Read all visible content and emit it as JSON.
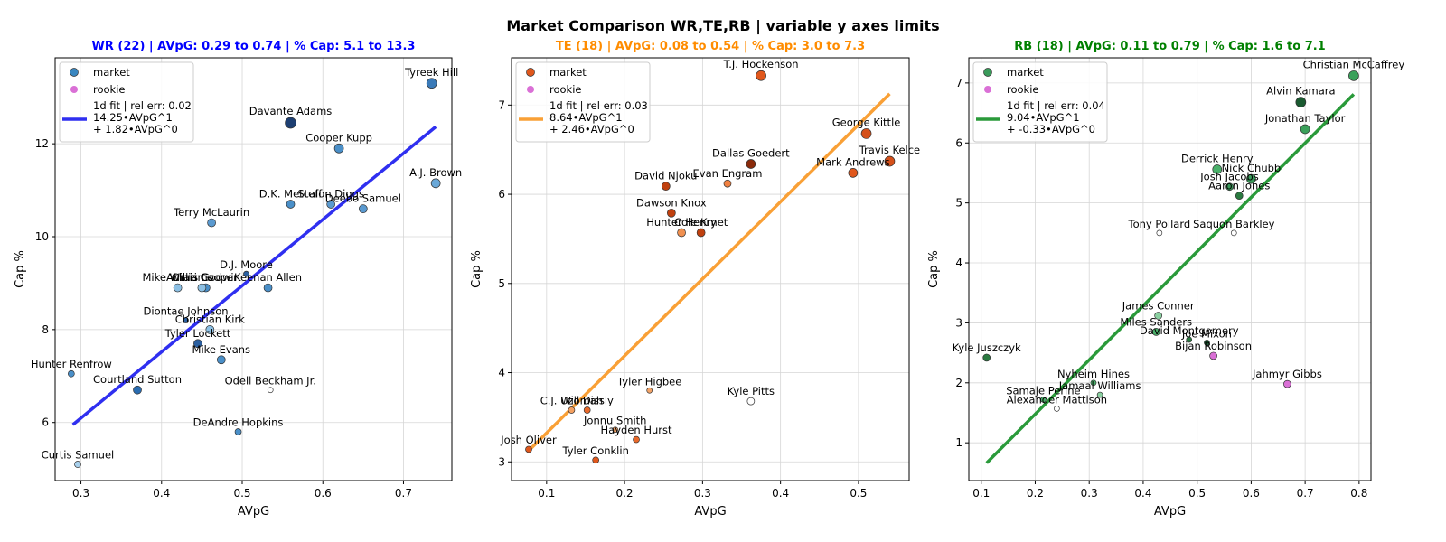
{
  "suptitle": "Market Comparison WR,TE,RB | variable y axes limits",
  "colors": {
    "market_edge": "#333333",
    "rookie": "#da70d6",
    "grid": "#d6d6d6"
  },
  "chart_data": [
    {
      "type": "scatter",
      "title": "WR (22) | AVpG: 0.29 to 0.74 | % Cap: 5.1 to 13.3",
      "title_color": "#0000ff",
      "fit_color": "#2f2ff0",
      "market_color": "#3a87c0",
      "xlabel": "AVpG",
      "ylabel": "Cap %",
      "xlim": [
        0.268,
        0.76
      ],
      "ylim": [
        4.75,
        13.85
      ],
      "xticks": [
        0.3,
        0.4,
        0.5,
        0.6,
        0.7
      ],
      "xtick_labels": [
        "0.3",
        "0.4",
        "0.5",
        "0.6",
        "0.7"
      ],
      "yticks": [
        6,
        8,
        10,
        12
      ],
      "ytick_labels": [
        "6",
        "8",
        "10",
        "12"
      ],
      "grid": true,
      "legend": {
        "location": "upper-left",
        "market": "market",
        "rookie": "rookie",
        "fit_lines": [
          "1d fit | rel err: 0.02",
          "14.25•AVpG^1",
          "+ 1.82•AVpG^0"
        ]
      },
      "fit": {
        "coef": [
          14.25,
          1.82
        ],
        "x_range": [
          0.29,
          0.74
        ]
      },
      "points": [
        {
          "label": "Tyreek Hill",
          "x": 0.735,
          "y": 13.3,
          "fill": "#3a7ab8",
          "r": 5.5
        },
        {
          "label": "Davante Adams",
          "x": 0.56,
          "y": 12.45,
          "fill": "#1d3f72",
          "r": 6
        },
        {
          "label": "Cooper Kupp",
          "x": 0.62,
          "y": 11.9,
          "fill": "#4a8fc8",
          "r": 5
        },
        {
          "label": "A.J. Brown",
          "x": 0.74,
          "y": 11.15,
          "fill": "#6aa8d8",
          "r": 5
        },
        {
          "label": "D.K. Metcalf",
          "x": 0.56,
          "y": 10.7,
          "fill": "#4a8fc8",
          "r": 4.5
        },
        {
          "label": "Stefon Diggs",
          "x": 0.61,
          "y": 10.7,
          "fill": "#5a9ad0",
          "r": 4.5
        },
        {
          "label": "Deebo Samuel",
          "x": 0.65,
          "y": 10.6,
          "fill": "#5a9ad0",
          "r": 4.5
        },
        {
          "label": "Terry McLaurin",
          "x": 0.462,
          "y": 10.3,
          "fill": "#5a9ad0",
          "r": 4.5
        },
        {
          "label": "D.J. Moore",
          "x": 0.505,
          "y": 9.2,
          "fill": "#2a5fa0",
          "r": 3
        },
        {
          "label": "Mike Williams",
          "x": 0.42,
          "y": 8.9,
          "fill": "#8cc0e4",
          "r": 4.5
        },
        {
          "label": "Chris Godwin",
          "x": 0.455,
          "y": 8.9,
          "fill": "#4a8fc8",
          "r": 4.5
        },
        {
          "label": "Amari Cooper",
          "x": 0.45,
          "y": 8.9,
          "fill": "#8cc0e4",
          "r": 4.5
        },
        {
          "label": "Keenan Allen",
          "x": 0.532,
          "y": 8.9,
          "fill": "#4a8fc8",
          "r": 4.5
        },
        {
          "label": "Diontae Johnson",
          "x": 0.43,
          "y": 8.2,
          "fill": "#2a5fa0",
          "r": 3
        },
        {
          "label": "Christian Kirk",
          "x": 0.46,
          "y": 8.0,
          "fill": "#8cc0e4",
          "r": 4.5
        },
        {
          "label": "Tyler Lockett",
          "x": 0.445,
          "y": 7.7,
          "fill": "#2a5fa0",
          "r": 4.5
        },
        {
          "label": "Mike Evans",
          "x": 0.474,
          "y": 7.35,
          "fill": "#4a8fc8",
          "r": 4.5
        },
        {
          "label": "Hunter Renfrow",
          "x": 0.288,
          "y": 7.05,
          "fill": "#4a8fc8",
          "r": 3.5
        },
        {
          "label": "Courtland Sutton",
          "x": 0.37,
          "y": 6.7,
          "fill": "#2a6cb0",
          "r": 4.5
        },
        {
          "label": "Odell Beckham Jr.",
          "x": 0.535,
          "y": 6.7,
          "fill": "#ffffff",
          "r": 3
        },
        {
          "label": "DeAndre Hopkins",
          "x": 0.495,
          "y": 5.8,
          "fill": "#4a8fc8",
          "r": 3.5
        },
        {
          "label": "Curtis Samuel",
          "x": 0.296,
          "y": 5.1,
          "fill": "#a8d0ec",
          "r": 3.5
        }
      ]
    },
    {
      "type": "scatter",
      "title": "TE (18) | AVpG: 0.08 to 0.54 | % Cap: 3.0 to 7.3",
      "title_color": "#ff8c00",
      "fit_color": "#f9a036",
      "market_color": "#e0571c",
      "xlabel": "AVpG",
      "ylabel": "Cap %",
      "xlim": [
        0.055,
        0.565
      ],
      "ylim": [
        2.79,
        7.53
      ],
      "xticks": [
        0.1,
        0.2,
        0.3,
        0.4,
        0.5
      ],
      "xtick_labels": [
        "0.1",
        "0.2",
        "0.3",
        "0.4",
        "0.5"
      ],
      "yticks": [
        3,
        4,
        5,
        6,
        7
      ],
      "ytick_labels": [
        "3",
        "4",
        "5",
        "6",
        "7"
      ],
      "grid": true,
      "legend": {
        "location": "upper-left",
        "market": "market",
        "rookie": "rookie",
        "fit_lines": [
          "1d fit | rel err: 0.03",
          "8.64•AVpG^1",
          "+ 2.46•AVpG^0"
        ]
      },
      "fit": {
        "coef": [
          8.64,
          2.46
        ],
        "x_range": [
          0.08,
          0.54
        ]
      },
      "points": [
        {
          "label": "T.J. Hockenson",
          "x": 0.375,
          "y": 7.33,
          "fill": "#e0571c",
          "r": 5.5
        },
        {
          "label": "George Kittle",
          "x": 0.51,
          "y": 6.68,
          "fill": "#d5501a",
          "r": 5.5
        },
        {
          "label": "Travis Kelce",
          "x": 0.54,
          "y": 6.37,
          "fill": "#d5501a",
          "r": 5.5
        },
        {
          "label": "Dallas Goedert",
          "x": 0.362,
          "y": 6.34,
          "fill": "#8a2a0a",
          "r": 5
        },
        {
          "label": "Mark Andrews",
          "x": 0.493,
          "y": 6.24,
          "fill": "#e0571c",
          "r": 5
        },
        {
          "label": "Evan Engram",
          "x": 0.332,
          "y": 6.12,
          "fill": "#f08040",
          "r": 4
        },
        {
          "label": "David Njoku",
          "x": 0.253,
          "y": 6.09,
          "fill": "#c0400e",
          "r": 4.5
        },
        {
          "label": "Dawson Knox",
          "x": 0.26,
          "y": 5.79,
          "fill": "#c0400e",
          "r": 4.5
        },
        {
          "label": "Hunter Henry",
          "x": 0.273,
          "y": 5.57,
          "fill": "#f09050",
          "r": 4.5
        },
        {
          "label": "Cole Kmet",
          "x": 0.298,
          "y": 5.57,
          "fill": "#c0400e",
          "r": 4.5
        },
        {
          "label": "Tyler Higbee",
          "x": 0.232,
          "y": 3.8,
          "fill": "#f4a468",
          "r": 3
        },
        {
          "label": "Kyle Pitts",
          "x": 0.362,
          "y": 3.68,
          "fill": "#ffffff",
          "r": 4
        },
        {
          "label": "C.J. Uzomah",
          "x": 0.132,
          "y": 3.58,
          "fill": "#f4a060",
          "r": 3.5
        },
        {
          "label": "Will Dissly",
          "x": 0.152,
          "y": 3.58,
          "fill": "#e8692a",
          "r": 3.5
        },
        {
          "label": "Jonnu Smith",
          "x": 0.188,
          "y": 3.36,
          "fill": "#f4a468",
          "r": 3
        },
        {
          "label": "Hayden Hurst",
          "x": 0.215,
          "y": 3.25,
          "fill": "#e8692a",
          "r": 3.5
        },
        {
          "label": "Josh Oliver",
          "x": 0.077,
          "y": 3.14,
          "fill": "#e0571c",
          "r": 3.5
        },
        {
          "label": "Tyler Conklin",
          "x": 0.163,
          "y": 3.02,
          "fill": "#e0571c",
          "r": 3.5
        }
      ]
    },
    {
      "type": "scatter",
      "title": "RB (18) | AVpG: 0.11 to 0.79 | % Cap: 1.6 to 7.1",
      "title_color": "#008000",
      "fit_color": "#2a9a3a",
      "market_color": "#3a9a5a",
      "xlabel": "AVpG",
      "ylabel": "Cap %",
      "xlim": [
        0.077,
        0.822
      ],
      "ylim": [
        0.37,
        7.42
      ],
      "xticks": [
        0.1,
        0.2,
        0.3,
        0.4,
        0.5,
        0.6,
        0.7,
        0.8
      ],
      "xtick_labels": [
        "0.1",
        "0.2",
        "0.3",
        "0.4",
        "0.5",
        "0.6",
        "0.7",
        "0.8"
      ],
      "yticks": [
        1,
        2,
        3,
        4,
        5,
        6,
        7
      ],
      "ytick_labels": [
        "1",
        "2",
        "3",
        "4",
        "5",
        "6",
        "7"
      ],
      "grid": true,
      "legend": {
        "location": "upper-left",
        "market": "market",
        "rookie": "rookie",
        "fit_lines": [
          "1d fit | rel err: 0.04",
          "9.04•AVpG^1",
          "+ -0.33•AVpG^0"
        ]
      },
      "fit": {
        "coef": [
          9.04,
          -0.33
        ],
        "x_range": [
          0.11,
          0.79
        ]
      },
      "points": [
        {
          "label": "Christian McCaffrey",
          "x": 0.79,
          "y": 7.12,
          "fill": "#3aa05a",
          "r": 5.5
        },
        {
          "label": "Alvin Kamara",
          "x": 0.692,
          "y": 6.68,
          "fill": "#1a5a30",
          "r": 5.5
        },
        {
          "label": "Jonathan Taylor",
          "x": 0.7,
          "y": 6.23,
          "fill": "#3aa05a",
          "r": 5
        },
        {
          "label": "Derrick Henry",
          "x": 0.537,
          "y": 5.56,
          "fill": "#4ab06a",
          "r": 5
        },
        {
          "label": "Nick Chubb",
          "x": 0.6,
          "y": 5.4,
          "fill": "#3a9a5a",
          "r": 5
        },
        {
          "label": "Josh Jacobs",
          "x": 0.56,
          "y": 5.27,
          "fill": "#3a9a5a",
          "r": 4
        },
        {
          "label": "Aaron Jones",
          "x": 0.578,
          "y": 5.12,
          "fill": "#2a7a40",
          "r": 4
        },
        {
          "label": "Tony Pollard",
          "x": 0.43,
          "y": 4.5,
          "fill": "#ffffff",
          "r": 3
        },
        {
          "label": "Saquon Barkley",
          "x": 0.568,
          "y": 4.5,
          "fill": "#ffffff",
          "r": 3
        },
        {
          "label": "James Conner",
          "x": 0.428,
          "y": 3.12,
          "fill": "#8ad0a0",
          "r": 4
        },
        {
          "label": "Miles Sanders",
          "x": 0.424,
          "y": 2.85,
          "fill": "#4ab06a",
          "r": 4
        },
        {
          "label": "David Montgomery",
          "x": 0.485,
          "y": 2.72,
          "fill": "#2a7a40",
          "r": 3
        },
        {
          "label": "Joe Mixon",
          "x": 0.518,
          "y": 2.67,
          "fill": "#1a5a30",
          "r": 3
        },
        {
          "label": "Bijan Robinson",
          "x": 0.53,
          "y": 2.45,
          "fill": "#da70d6",
          "r": 4
        },
        {
          "label": "Kyle Juszczyk",
          "x": 0.11,
          "y": 2.42,
          "fill": "#2a7a40",
          "r": 4
        },
        {
          "label": "Jahmyr Gibbs",
          "x": 0.667,
          "y": 1.98,
          "fill": "#da70d6",
          "r": 4
        },
        {
          "label": "Nyheim Hines",
          "x": 0.308,
          "y": 2.0,
          "fill": "#4ab06a",
          "r": 3
        },
        {
          "label": "Jamaal Williams",
          "x": 0.32,
          "y": 1.8,
          "fill": "#8ad0a0",
          "r": 3
        },
        {
          "label": "Samaje Perine",
          "x": 0.215,
          "y": 1.72,
          "fill": "#4ab06a",
          "r": 3
        },
        {
          "label": "Alexander Mattison",
          "x": 0.24,
          "y": 1.57,
          "fill": "#ffffff",
          "r": 3
        }
      ]
    }
  ]
}
